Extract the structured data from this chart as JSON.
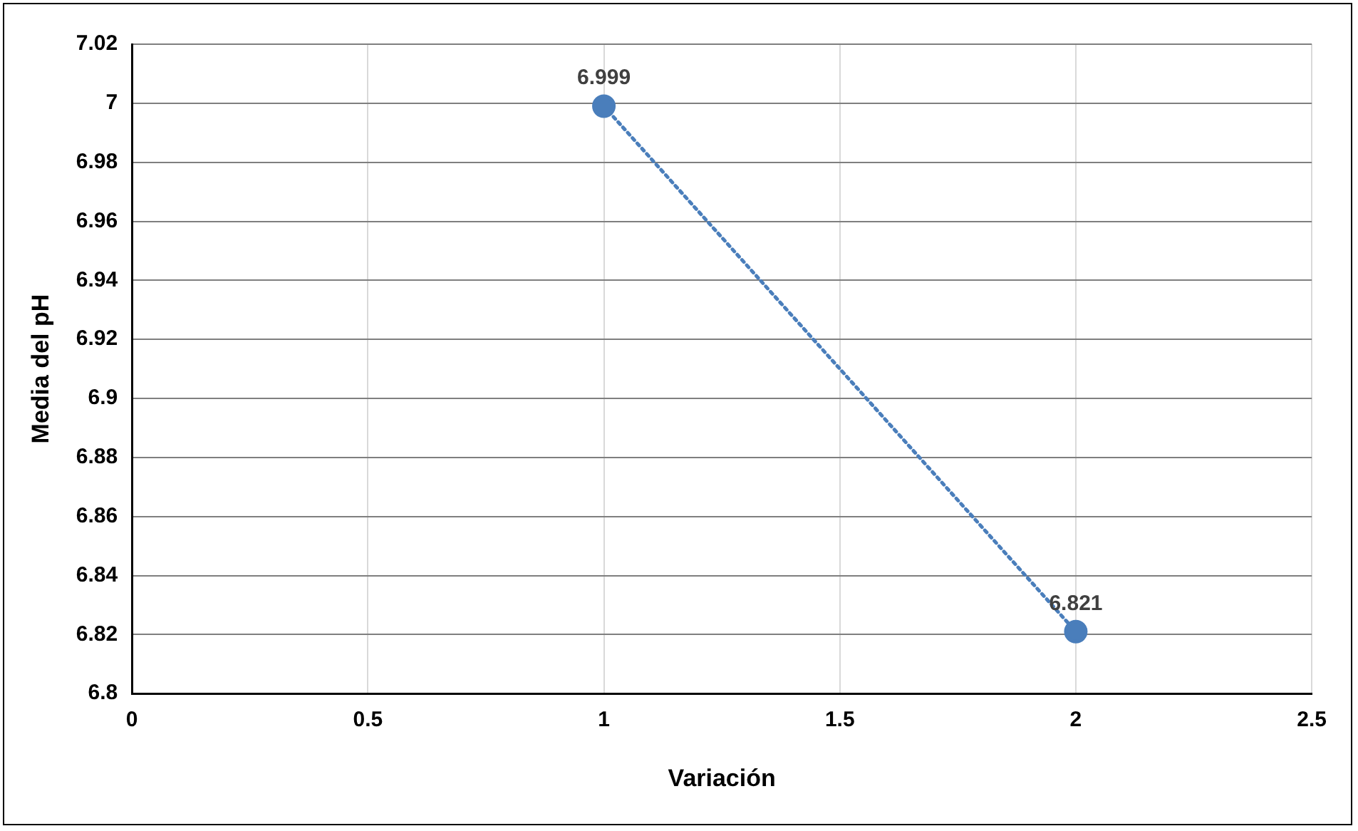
{
  "chart_data": {
    "type": "line",
    "xlabel": "Variación",
    "ylabel": "Media del pH",
    "x": [
      1,
      2
    ],
    "series": [
      {
        "color": "#4a7ebb",
        "values": [
          6.999,
          6.821
        ]
      }
    ],
    "xlim": [
      0,
      2.5
    ],
    "xticks": [
      0,
      0.5,
      1,
      1.5,
      2,
      2.5
    ],
    "ylim": [
      6.8,
      7.02
    ],
    "yticks": [
      6.8,
      6.82,
      6.84,
      6.86,
      6.88,
      6.9,
      6.92,
      6.94,
      6.96,
      6.98,
      7,
      7.02
    ],
    "grid": true,
    "legend": false,
    "marker": "circle",
    "line_style": "dotted",
    "data_labels": true
  }
}
